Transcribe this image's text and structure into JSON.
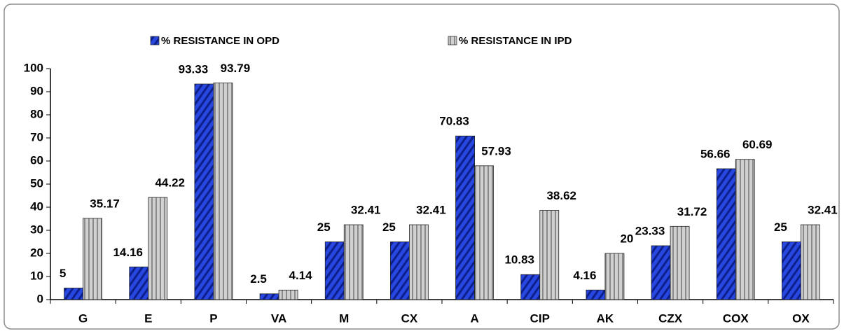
{
  "chart_data": {
    "type": "bar",
    "categories": [
      "G",
      "E",
      "P",
      "VA",
      "M",
      "CX",
      "A",
      "CIP",
      "AK",
      "CZX",
      "COX",
      "OX"
    ],
    "series": [
      {
        "name": "% RESISTANCE IN OPD",
        "color": "#1f3fd6",
        "values": [
          5,
          14.16,
          93.33,
          2.5,
          25,
          25,
          70.83,
          10.83,
          4.16,
          23.33,
          56.66,
          25
        ]
      },
      {
        "name": "% RESISTANCE IN IPD",
        "color": "#b8b8b8",
        "values": [
          35.17,
          44.22,
          93.79,
          4.14,
          32.41,
          32.41,
          57.93,
          38.62,
          20,
          31.72,
          60.69,
          32.41
        ]
      }
    ],
    "ylim": [
      0,
      100
    ],
    "yticks": [
      0,
      10,
      20,
      30,
      40,
      50,
      60,
      70,
      80,
      90,
      100
    ],
    "grid": false,
    "legend": "top"
  }
}
